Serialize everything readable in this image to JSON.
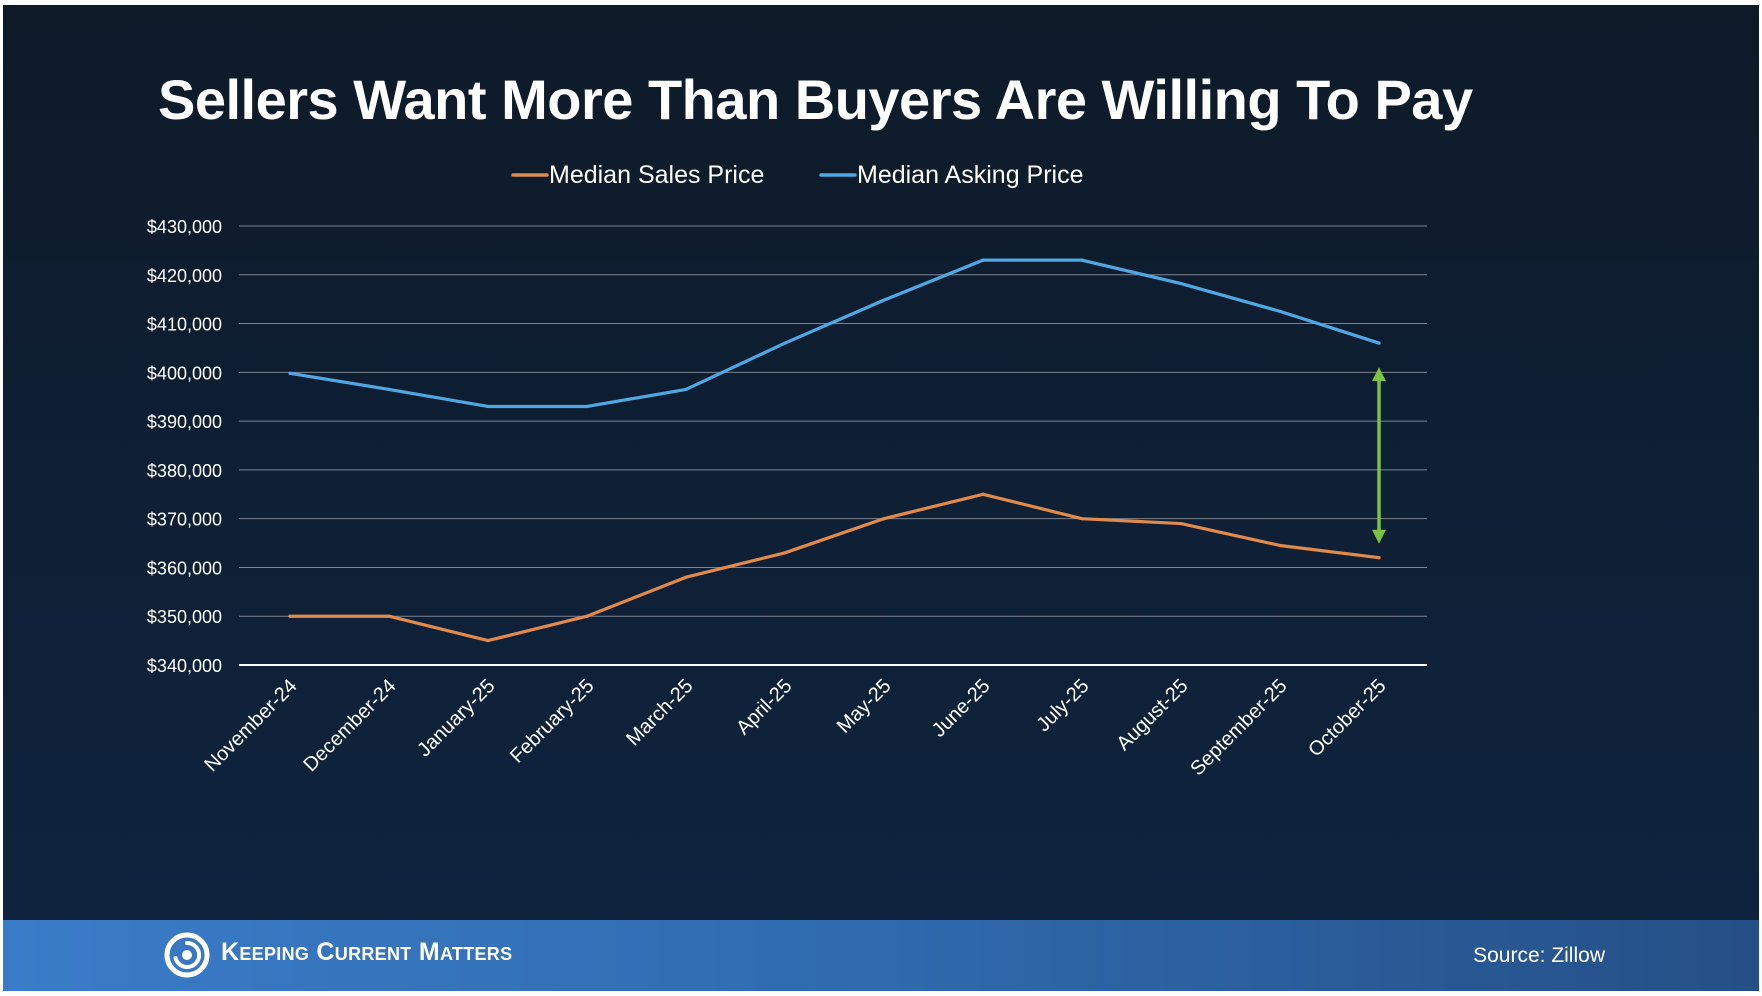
{
  "slide": {
    "title": "Sellers Want More Than Buyers Are Willing To Pay",
    "brand": "Keeping Current Matters",
    "source": "Source: Zillow"
  },
  "colors": {
    "background": "#0f2036",
    "sales": "#e08a4c",
    "asking": "#4fa8e4",
    "gap_arrow": "#7bc142",
    "grid": "#7d8590",
    "footer": "#3b7cc8"
  },
  "icons": {
    "logo": "swirl-logo-icon",
    "gap": "double-arrow-icon"
  },
  "chart_data": {
    "type": "line",
    "title": "Sellers Want More Than Buyers Are Willing To Pay",
    "xlabel": "",
    "ylabel": "",
    "categories": [
      "November-24",
      "December-24",
      "January-25",
      "February-25",
      "March-25",
      "April-25",
      "May-25",
      "June-25",
      "July-25",
      "August-25",
      "September-25",
      "October-25"
    ],
    "series": [
      {
        "name": "Median Sales Price",
        "color": "#e08a4c",
        "values": [
          350000,
          350000,
          345000,
          350000,
          358000,
          363000,
          370000,
          375000,
          370000,
          369000,
          364500,
          362000
        ]
      },
      {
        "name": "Median Asking Price",
        "color": "#4fa8e4",
        "values": [
          399800,
          396500,
          393000,
          393000,
          396500,
          406000,
          414800,
          423000,
          423000,
          418200,
          412500,
          406000
        ]
      }
    ],
    "ylim": [
      340000,
      430000
    ],
    "yticks": [
      340000,
      350000,
      360000,
      370000,
      380000,
      390000,
      400000,
      410000,
      420000,
      430000
    ],
    "ytick_labels": [
      "$340,000",
      "$350,000",
      "$360,000",
      "$370,000",
      "$380,000",
      "$390,000",
      "$400,000",
      "$410,000",
      "$420,000",
      "$430,000"
    ],
    "grid": true,
    "legend": "top-center",
    "annotation": {
      "type": "double-arrow",
      "category": "October-25",
      "from": 362000,
      "to": 406000
    }
  }
}
